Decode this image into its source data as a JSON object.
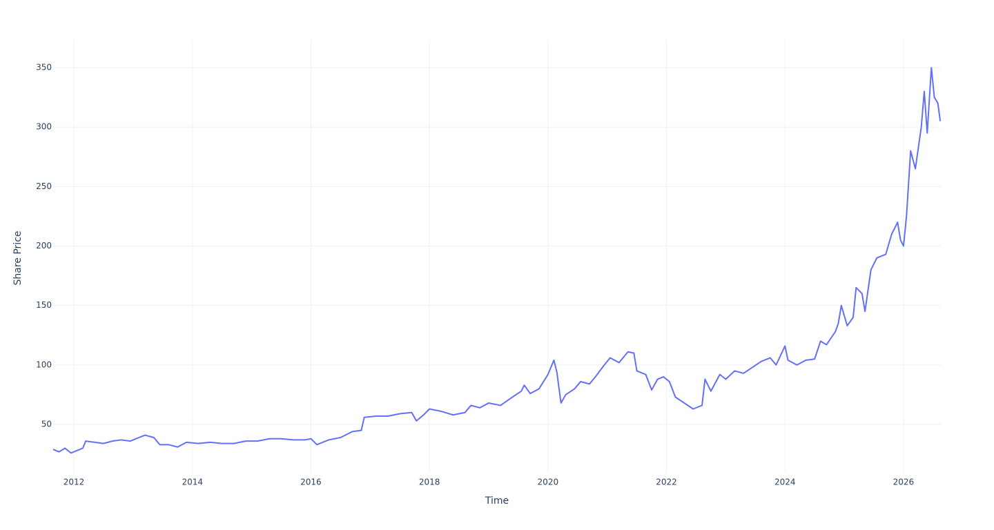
{
  "chart_data": {
    "type": "line",
    "x_label": "Time",
    "y_label": "Share Price",
    "grid": true,
    "xlim": [
      2011.65,
      2026.63
    ],
    "xticks": [
      2012,
      2014,
      2016,
      2018,
      2020,
      2022,
      2024,
      2026
    ],
    "ylim": [
      9.4,
      373.2
    ],
    "yticks": [
      50,
      100,
      150,
      200,
      250,
      300,
      350
    ],
    "series": [
      {
        "color": "#636efa",
        "x": [
          2011.65,
          2011.75,
          2011.85,
          2011.95,
          2012.05,
          2012.15,
          2012.2,
          2012.35,
          2012.5,
          2012.65,
          2012.8,
          2012.95,
          2013.1,
          2013.2,
          2013.35,
          2013.45,
          2013.6,
          2013.75,
          2013.9,
          2014.1,
          2014.3,
          2014.5,
          2014.7,
          2014.9,
          2015.1,
          2015.3,
          2015.5,
          2015.7,
          2015.9,
          2016.0,
          2016.1,
          2016.3,
          2016.5,
          2016.7,
          2016.85,
          2016.9,
          2017.1,
          2017.3,
          2017.5,
          2017.7,
          2017.78,
          2017.9,
          2018.0,
          2018.2,
          2018.4,
          2018.6,
          2018.7,
          2018.85,
          2019.0,
          2019.2,
          2019.4,
          2019.55,
          2019.6,
          2019.7,
          2019.85,
          2020.0,
          2020.1,
          2020.15,
          2020.22,
          2020.3,
          2020.45,
          2020.55,
          2020.7,
          2020.8,
          2020.95,
          2021.05,
          2021.2,
          2021.35,
          2021.45,
          2021.5,
          2021.65,
          2021.75,
          2021.85,
          2021.95,
          2022.05,
          2022.15,
          2022.3,
          2022.45,
          2022.6,
          2022.65,
          2022.75,
          2022.9,
          2023.0,
          2023.15,
          2023.3,
          2023.45,
          2023.6,
          2023.75,
          2023.85,
          2024.0,
          2024.05,
          2024.2,
          2024.35,
          2024.5,
          2024.6,
          2024.7,
          2024.85,
          2024.9,
          2024.95,
          2025.05,
          2025.15,
          2025.2,
          2025.3,
          2025.35,
          2025.45,
          2025.55,
          2025.7,
          2025.8,
          2025.9,
          2025.95,
          2026.0,
          2026.05,
          2026.12,
          2026.2,
          2026.3,
          2026.35,
          2026.4,
          2026.47,
          2026.52,
          2026.58,
          2026.62
        ],
        "values": [
          29,
          27,
          30,
          26,
          28,
          30,
          36,
          35,
          34,
          36,
          37,
          36,
          39,
          41,
          39,
          33,
          33,
          31,
          35,
          34,
          35,
          34,
          34,
          36,
          36,
          38,
          38,
          37,
          37,
          38,
          33,
          37,
          39,
          44,
          45,
          56,
          57,
          57,
          59,
          60,
          53,
          58,
          63,
          61,
          58,
          60,
          66,
          64,
          68,
          66,
          73,
          78,
          83,
          76,
          80,
          92,
          104,
          94,
          68,
          75,
          80,
          86,
          84,
          90,
          100,
          106,
          102,
          111,
          110,
          95,
          92,
          79,
          88,
          90,
          86,
          73,
          68,
          63,
          66,
          88,
          78,
          92,
          88,
          95,
          93,
          98,
          103,
          106,
          100,
          116,
          104,
          100,
          104,
          105,
          120,
          117,
          128,
          135,
          150,
          133,
          140,
          165,
          160,
          145,
          180,
          190,
          193,
          210,
          220,
          205,
          200,
          225,
          280,
          265,
          300,
          330,
          295,
          350,
          325,
          320,
          305
        ]
      }
    ]
  }
}
